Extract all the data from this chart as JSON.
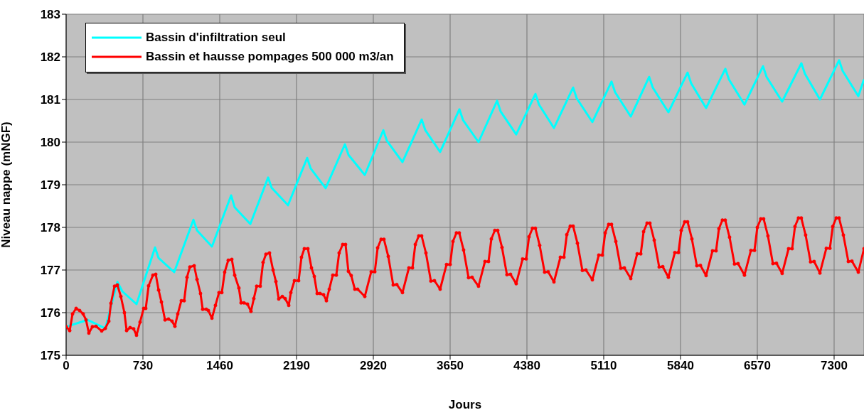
{
  "chart_data": {
    "type": "line",
    "xlabel": "Jours",
    "ylabel": "Niveau nappe (mNGF)",
    "xlim": [
      0,
      7584
    ],
    "xticks": [
      0,
      730,
      1460,
      2190,
      2920,
      3650,
      4380,
      5110,
      5840,
      6570,
      7300
    ],
    "ylim": [
      175,
      183
    ],
    "yticks": [
      175,
      176,
      177,
      178,
      179,
      180,
      181,
      182,
      183
    ],
    "grid": true,
    "legend": "top left",
    "line_style": "solid",
    "series": [
      {
        "name": "Bassin d'infiltration seul",
        "color": "#00ffff",
        "marker": "none",
        "x": [
          0,
          203,
          372,
          487,
          534,
          669,
          845,
          879,
          1027,
          1210,
          1244,
          1386,
          1568,
          1602,
          1751,
          1920,
          1953,
          2109,
          2291,
          2325,
          2467,
          2650,
          2684,
          2839,
          3015,
          3049,
          3197,
          3380,
          3414,
          3555,
          3738,
          3772,
          3920,
          4096,
          4130,
          4278,
          4461,
          4495,
          4637,
          4819,
          4853,
          5002,
          5184,
          5218,
          5367,
          5542,
          5576,
          5725,
          5907,
          5941,
          6083,
          6266,
          6300,
          6448,
          6624,
          6658,
          6806,
          6989,
          7023,
          7165,
          7347,
          7381,
          7530,
          7584
        ],
        "values": [
          175.67,
          175.83,
          175.63,
          176.72,
          176.5,
          176.2,
          177.53,
          177.28,
          176.95,
          178.18,
          177.93,
          177.55,
          178.75,
          178.47,
          178.08,
          179.17,
          178.93,
          178.52,
          179.63,
          179.38,
          178.92,
          179.95,
          179.7,
          179.23,
          180.28,
          180.03,
          179.53,
          180.53,
          180.28,
          179.77,
          180.77,
          180.52,
          180.0,
          180.97,
          180.72,
          180.18,
          181.13,
          180.88,
          180.33,
          181.28,
          181.03,
          180.47,
          181.42,
          181.17,
          180.6,
          181.53,
          181.28,
          180.7,
          181.63,
          181.38,
          180.8,
          181.72,
          181.47,
          180.88,
          181.78,
          181.53,
          180.95,
          181.85,
          181.6,
          181.0,
          181.92,
          181.67,
          181.08,
          181.47
        ]
      },
      {
        "name": "Bassin et hausse pompages 500 000 m3/an",
        "color": "#ff0000",
        "marker": "circle",
        "x": [
          0,
          34,
          61,
          95,
          128,
          162,
          189,
          216,
          250,
          284,
          338,
          372,
          406,
          426,
          460,
          487,
          520,
          554,
          575,
          608,
          642,
          669,
          703,
          737,
          757,
          784,
          825,
          852,
          879,
          906,
          940,
          973,
          1007,
          1034,
          1061,
          1095,
          1122,
          1149,
          1176,
          1217,
          1244,
          1277,
          1298,
          1332,
          1352,
          1386,
          1419,
          1453,
          1480,
          1507,
          1541,
          1575,
          1602,
          1642,
          1663,
          1690,
          1724,
          1757,
          1784,
          1811,
          1845,
          1872,
          1899,
          1933,
          1967,
          1994,
          2021,
          2055,
          2082,
          2116,
          2136,
          2170,
          2210,
          2237,
          2264,
          2298,
          2332,
          2359,
          2386,
          2413,
          2447,
          2474,
          2501,
          2535,
          2568,
          2595,
          2629,
          2656,
          2683,
          2710,
          2744,
          2771,
          2839,
          2900,
          2934,
          2961,
          2994,
          3021,
          3062,
          3109,
          3143,
          3197,
          3258,
          3292,
          3319,
          3352,
          3379,
          3420,
          3467,
          3501,
          3555,
          3616,
          3650,
          3677,
          3710,
          3737,
          3778,
          3825,
          3859,
          3920,
          3981,
          4015,
          4042,
          4075,
          4102,
          4143,
          4190,
          4224,
          4278,
          4339,
          4373,
          4400,
          4433,
          4460,
          4501,
          4548,
          4582,
          4637,
          4698,
          4732,
          4759,
          4792,
          4819,
          4860,
          4907,
          4941,
          5002,
          5063,
          5097,
          5124,
          5157,
          5184,
          5225,
          5272,
          5306,
          5367,
          5428,
          5462,
          5489,
          5522,
          5549,
          5590,
          5637,
          5671,
          5725,
          5786,
          5820,
          5847,
          5880,
          5907,
          5948,
          5995,
          6029,
          6083,
          6144,
          6178,
          6205,
          6238,
          6265,
          6306,
          6353,
          6387,
          6448,
          6509,
          6543,
          6570,
          6603,
          6630,
          6671,
          6718,
          6752,
          6806,
          6867,
          6901,
          6928,
          6961,
          6988,
          7029,
          7076,
          7110,
          7165,
          7226,
          7260,
          7287,
          7320,
          7347,
          7388,
          7435,
          7469,
          7530,
          7584
        ],
        "values": [
          175.67,
          175.58,
          175.97,
          176.1,
          176.05,
          175.97,
          175.83,
          175.52,
          175.67,
          175.68,
          175.57,
          175.63,
          175.8,
          176.22,
          176.62,
          176.65,
          176.38,
          176.0,
          175.58,
          175.65,
          175.62,
          175.47,
          175.78,
          176.1,
          176.1,
          176.63,
          176.88,
          176.9,
          176.53,
          176.25,
          175.83,
          175.85,
          175.8,
          175.68,
          175.97,
          176.28,
          176.28,
          176.83,
          177.07,
          177.1,
          176.78,
          176.45,
          176.08,
          176.08,
          176.05,
          175.87,
          176.17,
          176.47,
          176.47,
          176.95,
          177.23,
          177.25,
          176.88,
          176.58,
          176.23,
          176.23,
          176.2,
          176.03,
          176.33,
          176.62,
          176.62,
          177.18,
          177.37,
          177.4,
          177.0,
          176.73,
          176.32,
          176.38,
          176.33,
          176.17,
          176.47,
          176.75,
          176.75,
          177.3,
          177.5,
          177.5,
          177.05,
          176.85,
          176.45,
          176.45,
          176.42,
          176.28,
          176.55,
          176.88,
          176.88,
          177.4,
          177.6,
          177.6,
          176.97,
          176.87,
          176.55,
          176.55,
          176.38,
          176.96,
          176.96,
          177.52,
          177.72,
          177.72,
          177.32,
          176.65,
          176.66,
          176.47,
          177.05,
          177.05,
          177.6,
          177.8,
          177.8,
          177.4,
          176.74,
          176.75,
          176.55,
          177.13,
          177.13,
          177.67,
          177.87,
          177.87,
          177.47,
          176.82,
          176.83,
          176.62,
          177.2,
          177.2,
          177.73,
          177.93,
          177.93,
          177.53,
          176.89,
          176.9,
          176.68,
          177.26,
          177.26,
          177.78,
          177.98,
          177.98,
          177.58,
          176.95,
          176.96,
          176.72,
          177.3,
          177.3,
          177.83,
          178.03,
          178.03,
          177.63,
          176.99,
          177.0,
          176.77,
          177.35,
          177.35,
          177.87,
          178.07,
          178.07,
          177.67,
          177.04,
          177.05,
          176.8,
          177.38,
          177.38,
          177.9,
          178.1,
          178.1,
          177.7,
          177.07,
          177.08,
          176.83,
          177.41,
          177.41,
          177.93,
          178.13,
          178.13,
          177.73,
          177.1,
          177.11,
          176.87,
          177.45,
          177.45,
          177.97,
          178.17,
          178.17,
          177.77,
          177.14,
          177.15,
          176.88,
          177.46,
          177.46,
          178.0,
          178.2,
          178.2,
          177.8,
          177.15,
          177.16,
          176.92,
          177.5,
          177.5,
          178.02,
          178.22,
          178.22,
          177.82,
          177.19,
          177.2,
          176.93,
          177.51,
          177.51,
          178.02,
          178.22,
          178.22,
          177.82,
          177.2,
          177.21,
          176.95,
          177.5
        ]
      }
    ]
  }
}
